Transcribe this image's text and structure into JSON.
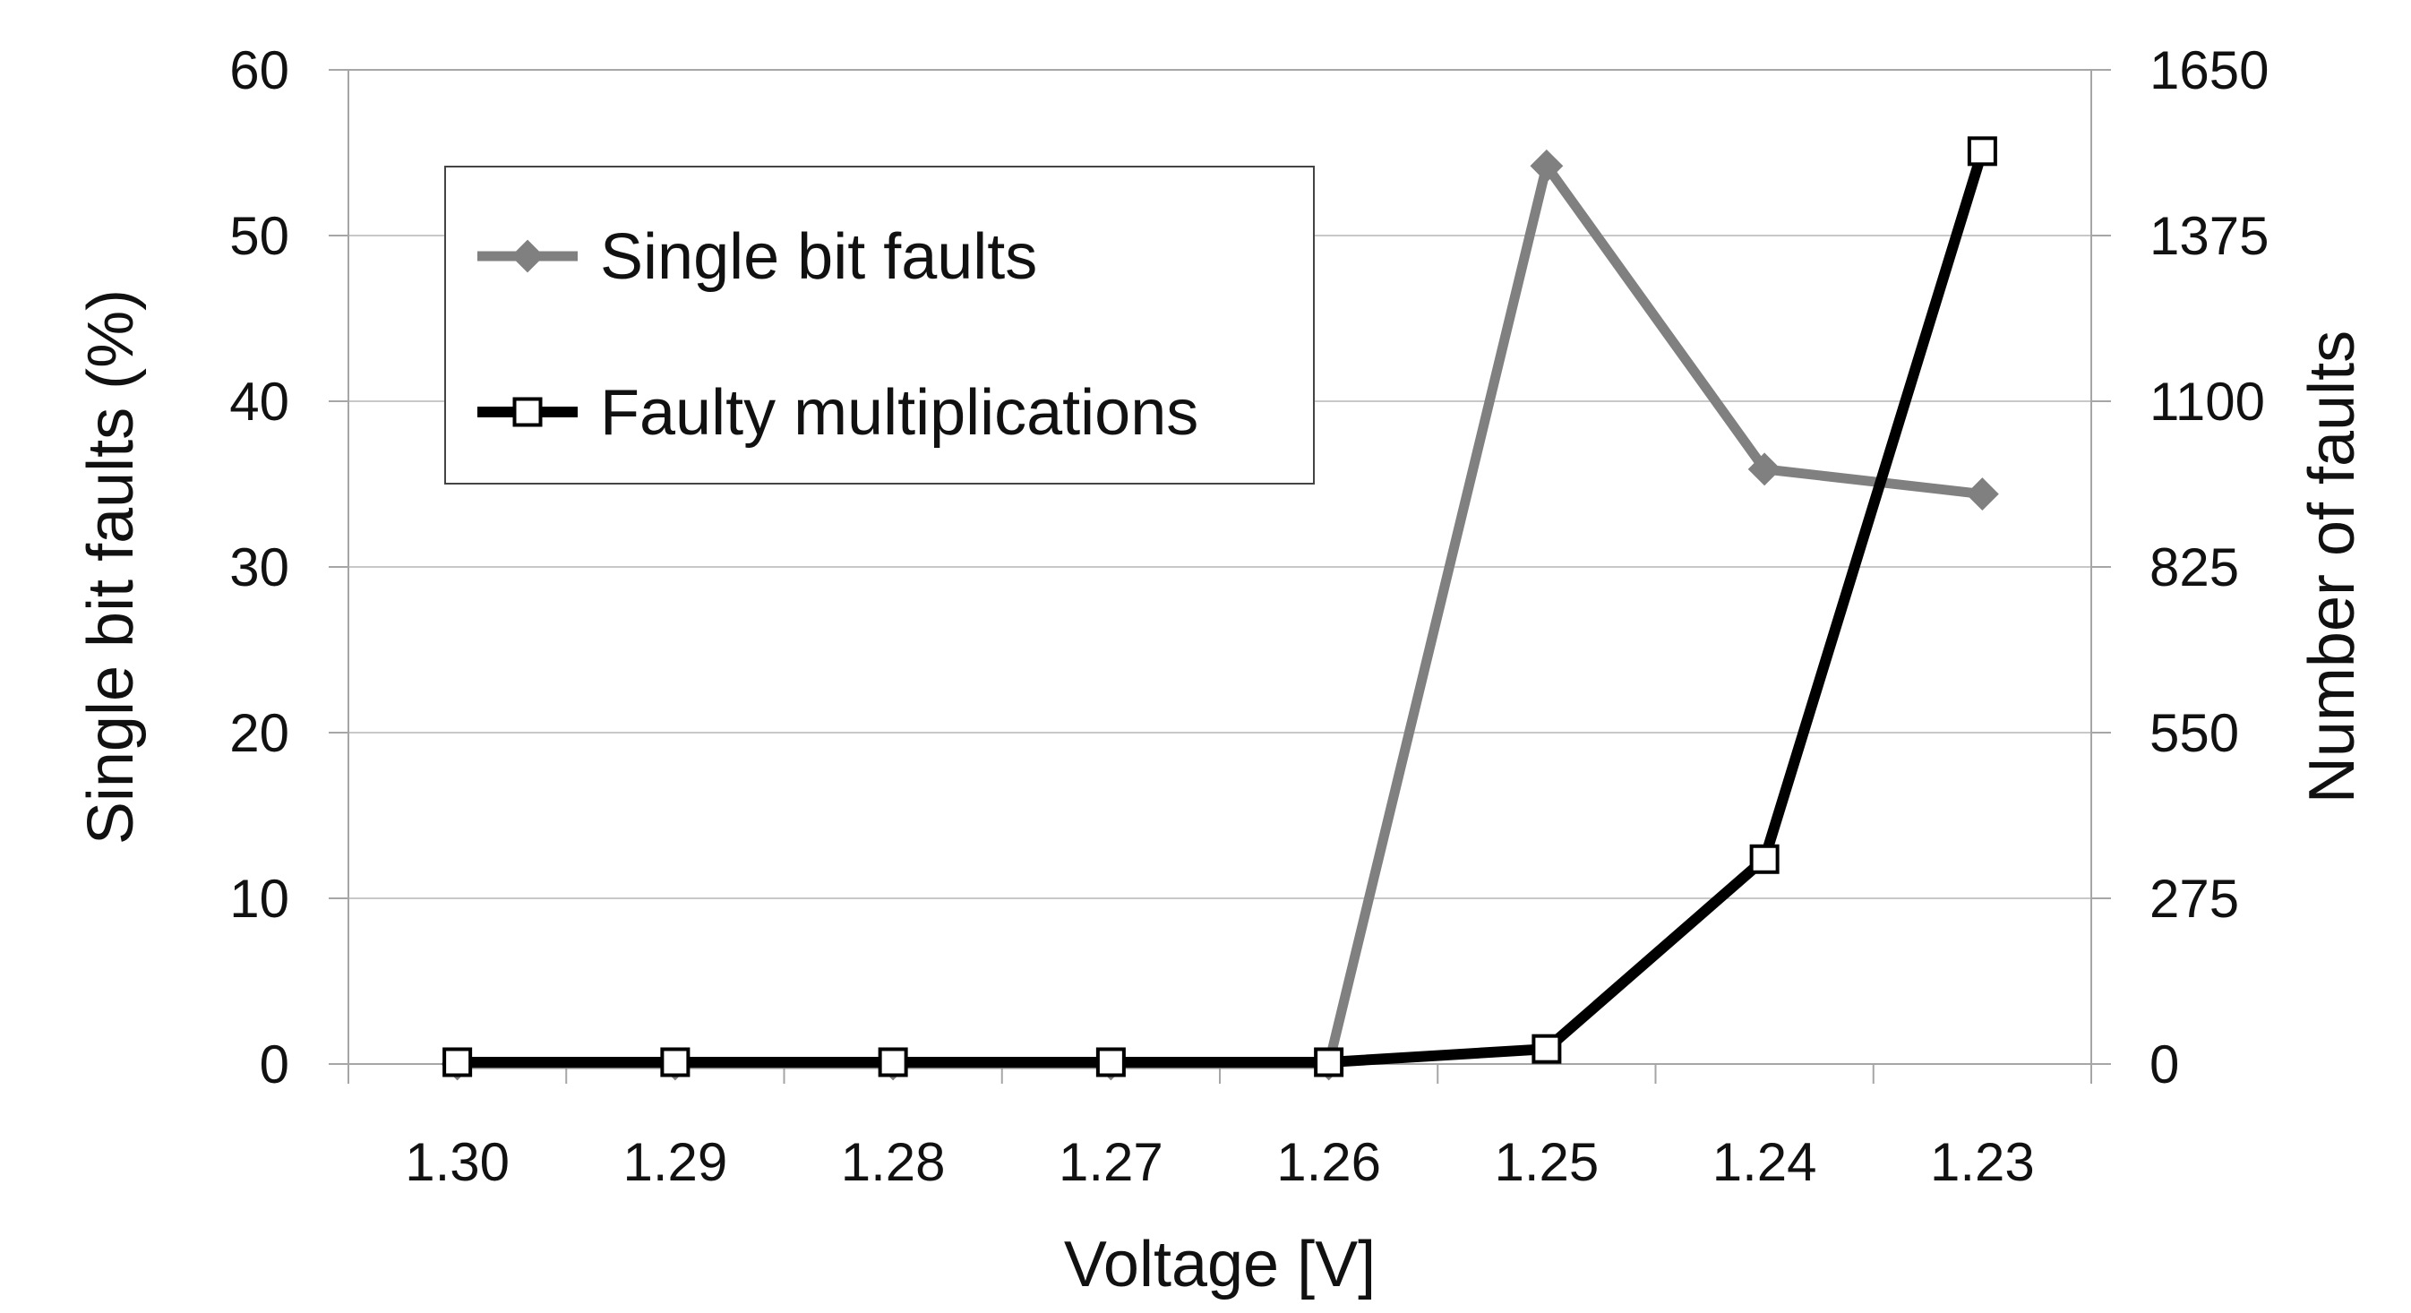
{
  "chart_data": {
    "type": "line",
    "categories": [
      "1.30",
      "1.29",
      "1.28",
      "1.27",
      "1.26",
      "1.25",
      "1.24",
      "1.23"
    ],
    "xlabel": "Voltage [V]",
    "ylabel": "Single bit faults (%)",
    "y2label": "Number of faults",
    "ylim": [
      0,
      60
    ],
    "y2lim": [
      0,
      1650
    ],
    "yticks": [
      "0",
      "10",
      "20",
      "30",
      "40",
      "50",
      "60"
    ],
    "y2ticks": [
      "0",
      "275",
      "550",
      "825",
      "1100",
      "1375",
      "1650"
    ],
    "grid": true,
    "legend_position": "top-left",
    "series": [
      {
        "name": "Single bit faults",
        "axis": "left",
        "color": "#808080",
        "marker": "diamond",
        "values": [
          0,
          0,
          0,
          0,
          0,
          54.2,
          35.9,
          34.4
        ]
      },
      {
        "name": "Faulty multiplications",
        "axis": "right",
        "color": "#000000",
        "marker": "square-open",
        "values": [
          3,
          3,
          3,
          3,
          3,
          25,
          340,
          1515
        ]
      }
    ]
  }
}
